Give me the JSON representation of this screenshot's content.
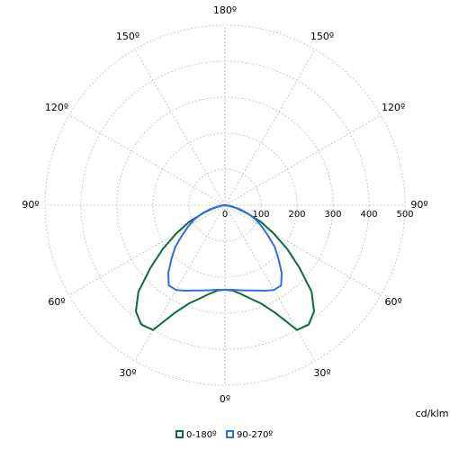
{
  "chart_data": {
    "type": "polar",
    "theta": [
      0,
      5,
      10,
      15,
      20,
      25,
      30,
      35,
      40,
      45,
      50,
      55,
      60,
      65,
      70,
      75,
      80,
      85,
      90
    ],
    "series": [
      {
        "name": "0-180º",
        "color": "#0b6b3a",
        "values": [
          235,
          238,
          250,
          268,
          290,
          330,
          400,
          405,
          385,
          340,
          270,
          210,
          155,
          110,
          65,
          35,
          15,
          5,
          0
        ]
      },
      {
        "name": "90-270º",
        "color": "#2e6ee8",
        "values": [
          235,
          236,
          240,
          245,
          252,
          262,
          272,
          272,
          245,
          210,
          180,
          145,
          118,
          95,
          68,
          42,
          20,
          8,
          0
        ]
      }
    ],
    "rlim": [
      0,
      500
    ],
    "rticks": [
      0,
      100,
      200,
      300,
      400,
      500
    ],
    "angle_ticks": [
      {
        "value": 0,
        "label": "0º"
      },
      {
        "value": 30,
        "label": "30º"
      },
      {
        "value": 60,
        "label": "60º"
      },
      {
        "value": 90,
        "label": "90º"
      },
      {
        "value": 120,
        "label": "120º"
      },
      {
        "value": 150,
        "label": "150º"
      },
      {
        "value": 180,
        "label": "180º"
      }
    ],
    "unit_label": "cd/klm",
    "grid": true
  }
}
